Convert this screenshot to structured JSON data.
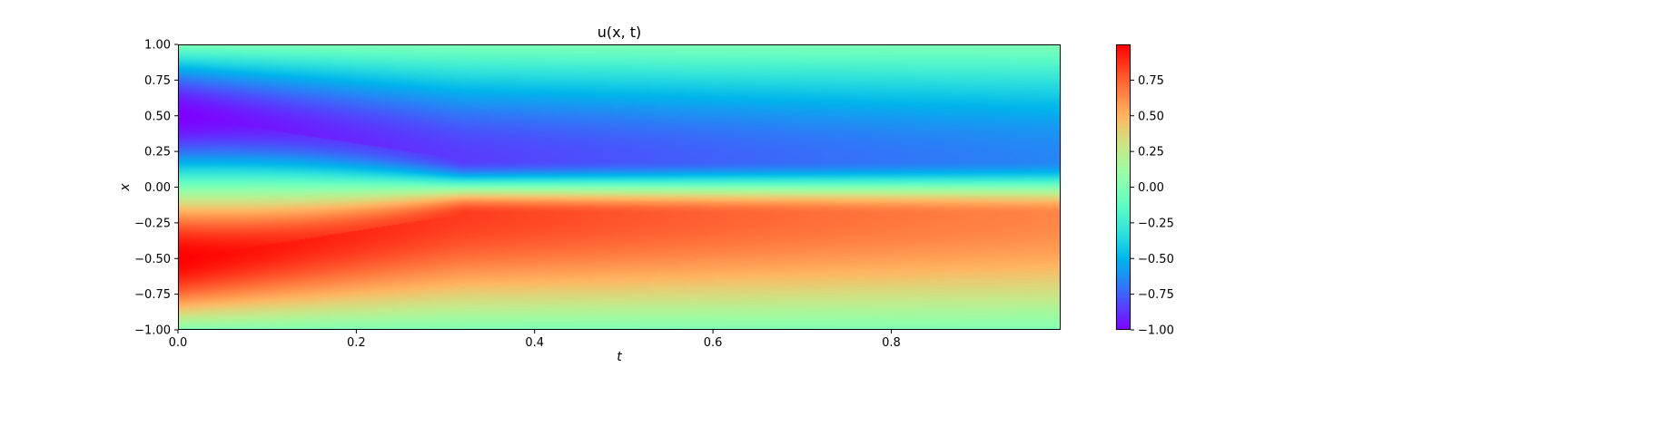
{
  "chart_data": {
    "type": "heatmap",
    "title": "u(x, t)",
    "xlabel": "t",
    "ylabel": "x",
    "xlim": [
      0.0,
      0.99
    ],
    "ylim": [
      -1.0,
      1.0
    ],
    "xticks": [
      0.0,
      0.2,
      0.4,
      0.6,
      0.8
    ],
    "xtick_labels": [
      "0.0",
      "0.2",
      "0.4",
      "0.6",
      "0.8"
    ],
    "yticks": [
      -1.0,
      -0.75,
      -0.5,
      -0.25,
      0.0,
      0.25,
      0.5,
      0.75,
      1.0
    ],
    "ytick_labels": [
      "−1.00",
      "−0.75",
      "−0.50",
      "−0.25",
      "0.00",
      "0.25",
      "0.50",
      "0.75",
      "1.00"
    ],
    "grid": false,
    "colormap": "rainbow",
    "colorbar": {
      "vmin": -1.0,
      "vmax": 1.0,
      "ticks": [
        -1.0,
        -0.75,
        -0.5,
        -0.25,
        0.0,
        0.25,
        0.5,
        0.75
      ],
      "tick_labels": [
        "−1.00",
        "−0.75",
        "−0.50",
        "−0.25",
        "0.00",
        "0.25",
        "0.50",
        "0.75"
      ],
      "placement": "right"
    },
    "field_description_values": {
      "initial_condition_u_at_t0": {
        "x": [
          -1.0,
          -0.5,
          0.0,
          0.5,
          1.0
        ],
        "u": [
          0.0,
          1.0,
          0.0,
          -1.0,
          0.0
        ]
      },
      "shock_location_x": 0.0,
      "shock_forms_at_t": 0.32
    }
  }
}
